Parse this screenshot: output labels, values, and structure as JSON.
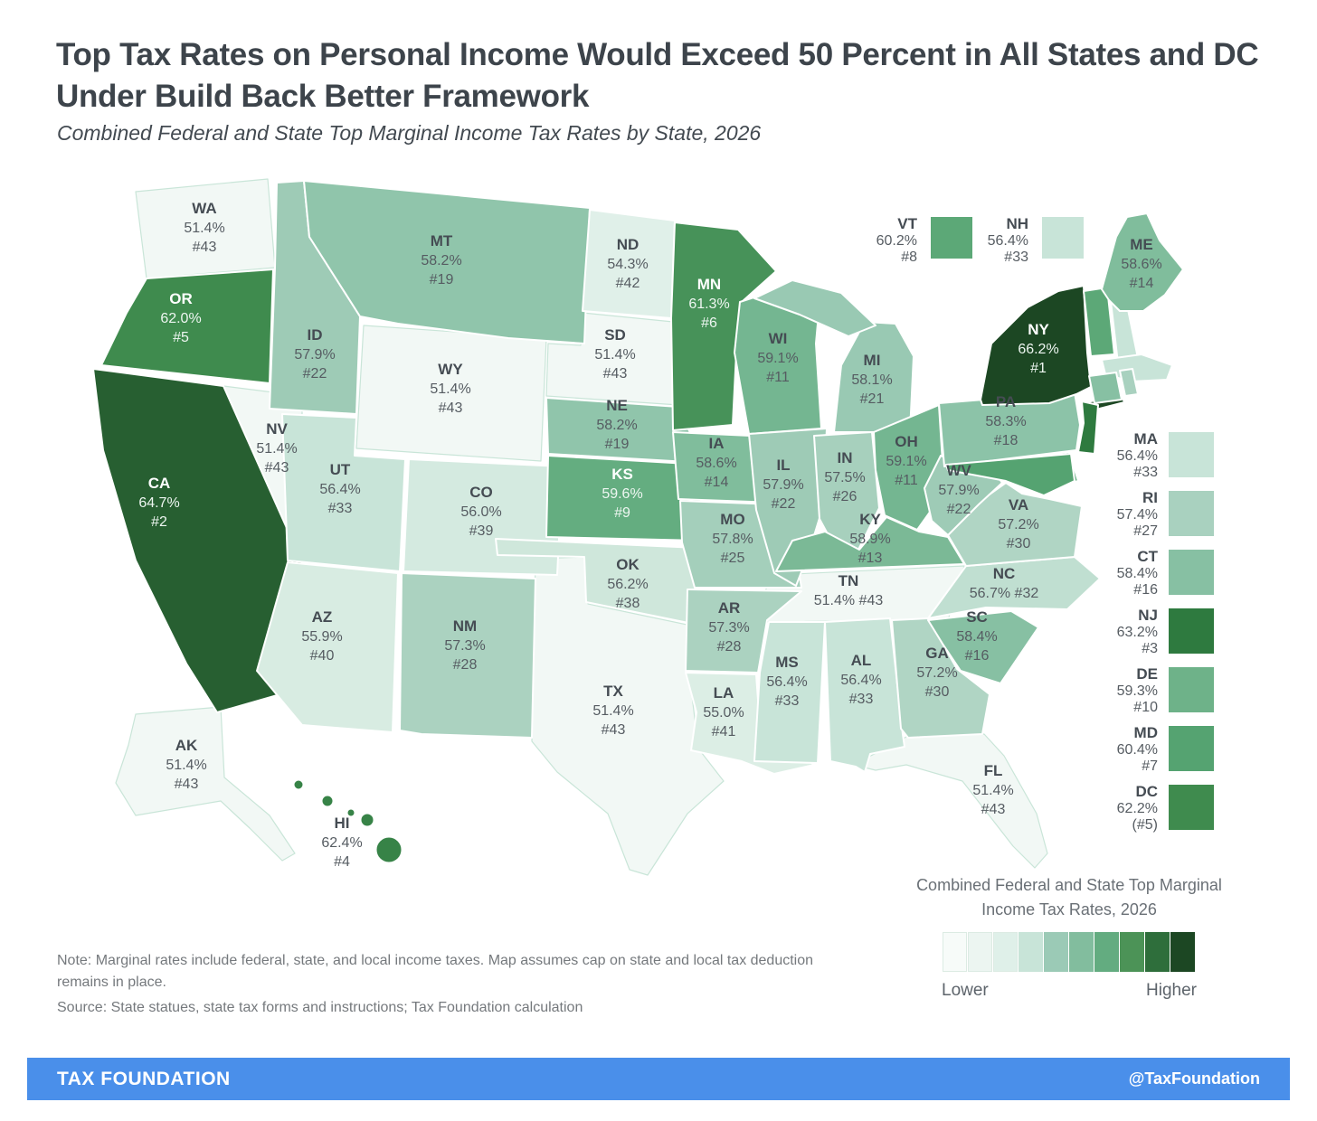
{
  "header": {
    "title": "Top Tax Rates on Personal Income Would Exceed 50 Percent in All States and DC Under Build Back Better Framework",
    "subtitle": "Combined Federal and State Top Marginal Income Tax Rates by State, 2026"
  },
  "chart_data": {
    "type": "heatmap",
    "form": "us-state-choropleth",
    "title": "Top Tax Rates on Personal Income Would Exceed 50 Percent in All States and DC Under Build Back Better Framework",
    "subtitle": "Combined Federal and State Top Marginal Income Tax Rates by State, 2026",
    "value_unit": "combined federal and state top marginal income tax rate (%), with national rank",
    "states": [
      {
        "abbr": "WA",
        "rate": "51.4%",
        "rank": "#43",
        "color": "#f2f8f5"
      },
      {
        "abbr": "OR",
        "rate": "62.0%",
        "rank": "#5",
        "color": "#3f8b4e",
        "text": "light"
      },
      {
        "abbr": "CA",
        "rate": "64.7%",
        "rank": "#2",
        "color": "#275f31",
        "text": "light"
      },
      {
        "abbr": "NV",
        "rate": "51.4%",
        "rank": "#43",
        "color": "#f2f8f5"
      },
      {
        "abbr": "ID",
        "rate": "57.9%",
        "rank": "#22",
        "color": "#9ecbb6"
      },
      {
        "abbr": "MT",
        "rate": "58.2%",
        "rank": "#19",
        "color": "#90c5ab"
      },
      {
        "abbr": "WY",
        "rate": "51.4%",
        "rank": "#43",
        "color": "#f2f8f5"
      },
      {
        "abbr": "UT",
        "rate": "56.4%",
        "rank": "#33",
        "color": "#c8e4d8"
      },
      {
        "abbr": "CO",
        "rate": "56.0%",
        "rank": "#39",
        "color": "#d4eae0"
      },
      {
        "abbr": "AZ",
        "rate": "55.9%",
        "rank": "#40",
        "color": "#d8ece2"
      },
      {
        "abbr": "NM",
        "rate": "57.3%",
        "rank": "#28",
        "color": "#abd2c0"
      },
      {
        "abbr": "ND",
        "rate": "54.3%",
        "rank": "#42",
        "color": "#e0f0e9"
      },
      {
        "abbr": "SD",
        "rate": "51.4%",
        "rank": "#43",
        "color": "#f2f8f5"
      },
      {
        "abbr": "NE",
        "rate": "58.2%",
        "rank": "#19",
        "color": "#90c5ab"
      },
      {
        "abbr": "KS",
        "rate": "59.6%",
        "rank": "#9",
        "color": "#64ad80",
        "text": "light"
      },
      {
        "abbr": "OK",
        "rate": "56.2%",
        "rank": "#38",
        "color": "#cfe7db"
      },
      {
        "abbr": "TX",
        "rate": "51.4%",
        "rank": "#43",
        "color": "#f2f8f5"
      },
      {
        "abbr": "MN",
        "rate": "61.3%",
        "rank": "#6",
        "color": "#479259",
        "text": "light"
      },
      {
        "abbr": "IA",
        "rate": "58.6%",
        "rank": "#14",
        "color": "#80bd9c"
      },
      {
        "abbr": "MO",
        "rate": "57.8%",
        "rank": "#25",
        "color": "#a4cfbb"
      },
      {
        "abbr": "AR",
        "rate": "57.3%",
        "rank": "#28",
        "color": "#abd2c0"
      },
      {
        "abbr": "LA",
        "rate": "55.0%",
        "rank": "#41",
        "color": "#dceee5"
      },
      {
        "abbr": "WI",
        "rate": "59.1%",
        "rank": "#11",
        "color": "#74b691"
      },
      {
        "abbr": "IL",
        "rate": "57.9%",
        "rank": "#22",
        "color": "#9ecbb6"
      },
      {
        "abbr": "MS",
        "rate": "56.4%",
        "rank": "#33",
        "color": "#c8e4d8"
      },
      {
        "abbr": "MI",
        "rate": "58.1%",
        "rank": "#21",
        "color": "#99c9b3"
      },
      {
        "abbr": "IN",
        "rate": "57.5%",
        "rank": "#26",
        "color": "#a7d0bd"
      },
      {
        "abbr": "OH",
        "rate": "59.1%",
        "rank": "#11",
        "color": "#74b691"
      },
      {
        "abbr": "KY",
        "rate": "58.9%",
        "rank": "#13",
        "color": "#7bb996"
      },
      {
        "abbr": "TN",
        "rate": "51.4%",
        "rank": "#43",
        "color": "#f2f8f5"
      },
      {
        "abbr": "AL",
        "rate": "56.4%",
        "rank": "#33",
        "color": "#c8e4d8"
      },
      {
        "abbr": "GA",
        "rate": "57.2%",
        "rank": "#30",
        "color": "#b0d5c4"
      },
      {
        "abbr": "FL",
        "rate": "51.4%",
        "rank": "#43",
        "color": "#f2f8f5"
      },
      {
        "abbr": "SC",
        "rate": "58.4%",
        "rank": "#16",
        "color": "#87c0a3"
      },
      {
        "abbr": "NC",
        "rate": "56.7%",
        "rank": "#32",
        "color": "#c0dfd1"
      },
      {
        "abbr": "VA",
        "rate": "57.2%",
        "rank": "#30",
        "color": "#b0d5c4"
      },
      {
        "abbr": "WV",
        "rate": "57.9%",
        "rank": "#22",
        "color": "#9ecbb6"
      },
      {
        "abbr": "PA",
        "rate": "58.3%",
        "rank": "#18",
        "color": "#8cc3a8"
      },
      {
        "abbr": "NY",
        "rate": "66.2%",
        "rank": "#1",
        "color": "#1c4723",
        "text": "light"
      },
      {
        "abbr": "NJ",
        "rate": "63.2%",
        "rank": "#3",
        "color": "#2e7a3f"
      },
      {
        "abbr": "DE",
        "rate": "59.3%",
        "rank": "#10",
        "color": "#6eb289"
      },
      {
        "abbr": "MD",
        "rate": "60.4%",
        "rank": "#7",
        "color": "#55a371"
      },
      {
        "abbr": "VT",
        "rate": "60.2%",
        "rank": "#8",
        "color": "#5ca877"
      },
      {
        "abbr": "NH",
        "rate": "56.4%",
        "rank": "#33",
        "color": "#c8e4d8"
      },
      {
        "abbr": "MA",
        "rate": "56.4%",
        "rank": "#33",
        "color": "#c8e4d8"
      },
      {
        "abbr": "CT",
        "rate": "58.4%",
        "rank": "#16",
        "color": "#87c0a3"
      },
      {
        "abbr": "RI",
        "rate": "57.4%",
        "rank": "#27",
        "color": "#a9d1bf"
      },
      {
        "abbr": "ME",
        "rate": "58.6%",
        "rank": "#14",
        "color": "#80bd9c"
      },
      {
        "abbr": "AK",
        "rate": "51.4%",
        "rank": "#43",
        "color": "#f2f8f5"
      },
      {
        "abbr": "HI",
        "rate": "62.4%",
        "rank": "#4",
        "color": "#378347"
      },
      {
        "abbr": "DC",
        "rate": "62.2%",
        "rank": "(#5)",
        "color": "#3f8b4e"
      }
    ],
    "callouts_top": [
      "VT",
      "NH"
    ],
    "callouts_right": [
      "MA",
      "RI",
      "CT",
      "NJ",
      "DE",
      "MD",
      "DC"
    ],
    "legend": {
      "title": "Combined Federal and State Top Marginal Income Tax Rates, 2026",
      "lower": "Lower",
      "higher": "Higher",
      "colors": [
        "#f7fbf9",
        "#ecf5f1",
        "#dff0e9",
        "#c8e4d8",
        "#9bcab6",
        "#82bd9e",
        "#63ac80",
        "#4c9357",
        "#2e6e3b",
        "#1c4723"
      ]
    }
  },
  "notes": {
    "note": "Note: Marginal rates include federal, state, and local income taxes. Map assumes cap on state and local tax deduction remains in place.",
    "source": "Source: State statues, state tax forms and instructions; Tax Foundation calculation"
  },
  "footer": {
    "brand": "TAX FOUNDATION",
    "handle": "@TaxFoundation"
  }
}
